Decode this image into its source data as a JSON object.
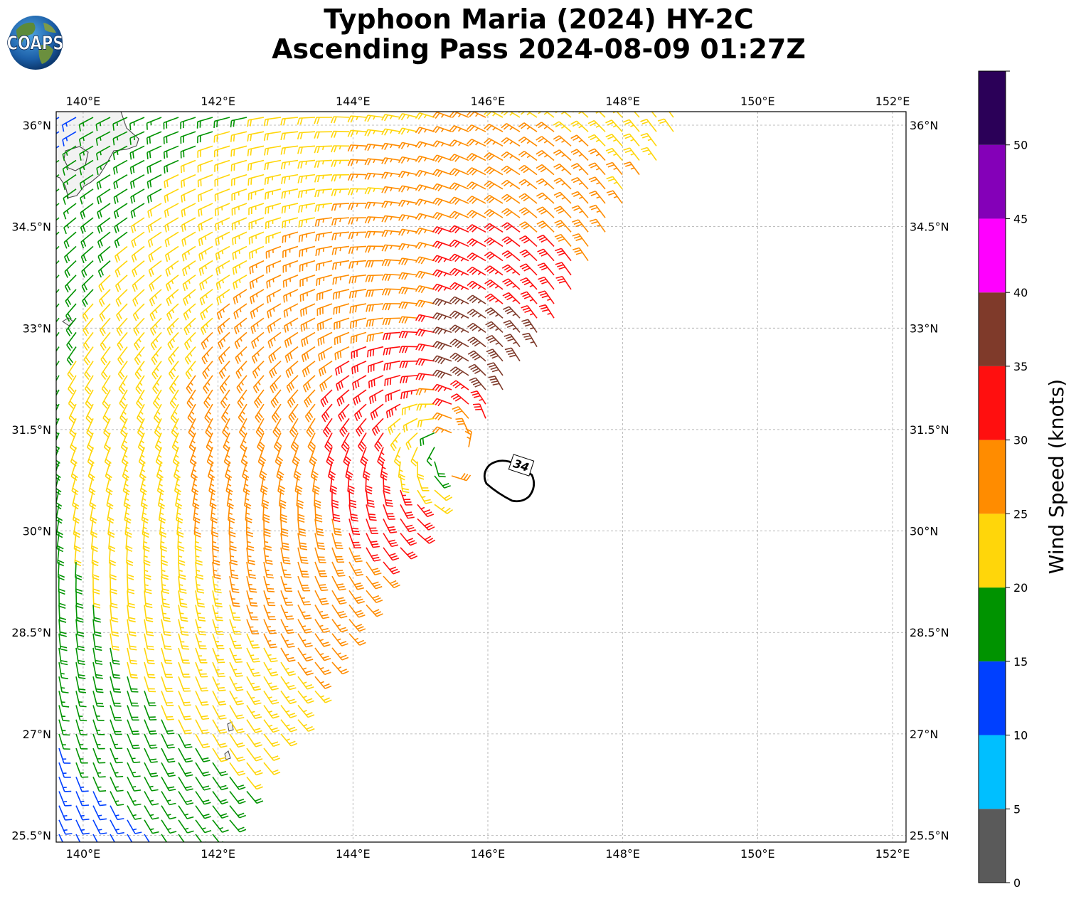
{
  "title": {
    "line1": "Typhoon Maria (2024) HY-2C",
    "line2": "Ascending Pass 2024-08-09 01:27Z"
  },
  "logo": {
    "text": "COAPS",
    "icon": "globe-logo-icon"
  },
  "map": {
    "lon_range": [
      139.6,
      152.2
    ],
    "lat_range": [
      25.4,
      36.2
    ],
    "lon_ticks": [
      {
        "v": 140,
        "label": "140°E"
      },
      {
        "v": 142,
        "label": "142°E"
      },
      {
        "v": 144,
        "label": "144°E"
      },
      {
        "v": 146,
        "label": "146°E"
      },
      {
        "v": 148,
        "label": "148°E"
      },
      {
        "v": 150,
        "label": "150°E"
      },
      {
        "v": 152,
        "label": "152°E"
      }
    ],
    "lat_ticks": [
      {
        "v": 36,
        "label": "36°N"
      },
      {
        "v": 34.5,
        "label": "34.5°N"
      },
      {
        "v": 33,
        "label": "33°N"
      },
      {
        "v": 31.5,
        "label": "31.5°N"
      },
      {
        "v": 30,
        "label": "30°N"
      },
      {
        "v": 28.5,
        "label": "28.5°N"
      },
      {
        "v": 27,
        "label": "27°N"
      },
      {
        "v": 25.5,
        "label": "25.5°N"
      }
    ],
    "gridlines": true,
    "storm_center": {
      "lon": 145.45,
      "lat": 31.2
    },
    "wind_radius_label": "34",
    "barb_units": "knots"
  },
  "colorbar": {
    "title": "Wind Speed (knots)",
    "min": 0,
    "max": 55,
    "bins": [
      {
        "from": 0,
        "to": 5,
        "color": "#5a5a5a"
      },
      {
        "from": 5,
        "to": 10,
        "color": "#00bfff"
      },
      {
        "from": 10,
        "to": 15,
        "color": "#0040ff"
      },
      {
        "from": 15,
        "to": 20,
        "color": "#009300"
      },
      {
        "from": 20,
        "to": 25,
        "color": "#ffd60a"
      },
      {
        "from": 25,
        "to": 30,
        "color": "#ff8c00"
      },
      {
        "from": 30,
        "to": 35,
        "color": "#ff0f0f"
      },
      {
        "from": 35,
        "to": 40,
        "color": "#7f3a2a"
      },
      {
        "from": 40,
        "to": 45,
        "color": "#ff00ff"
      },
      {
        "from": 45,
        "to": 50,
        "color": "#8400b8"
      },
      {
        "from": 50,
        "to": 55,
        "color": "#2b0058"
      }
    ],
    "ticks": [
      {
        "v": 0,
        "label": "0"
      },
      {
        "v": 5,
        "label": "5"
      },
      {
        "v": 10,
        "label": "10"
      },
      {
        "v": 15,
        "label": "15"
      },
      {
        "v": 20,
        "label": "20"
      },
      {
        "v": 25,
        "label": "25"
      },
      {
        "v": 30,
        "label": "30"
      },
      {
        "v": 35,
        "label": "35"
      },
      {
        "v": 40,
        "label": "40"
      },
      {
        "v": 45,
        "label": "45"
      },
      {
        "v": 50,
        "label": "50"
      }
    ]
  }
}
